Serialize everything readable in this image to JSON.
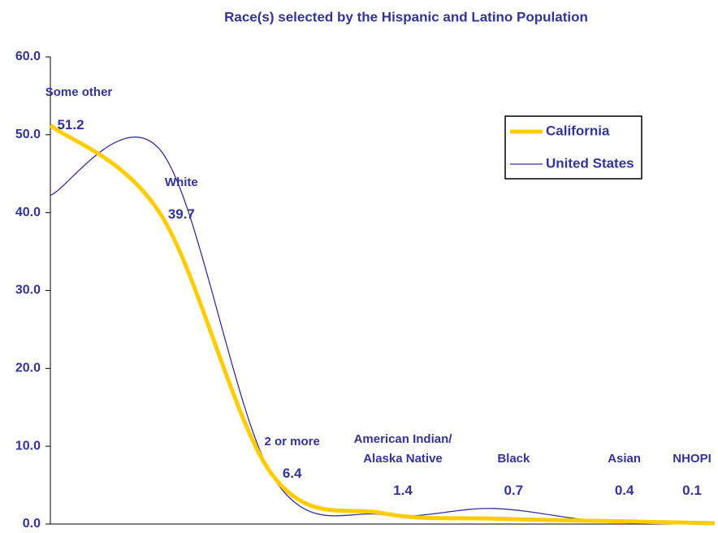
{
  "chart_data": {
    "type": "line",
    "title": "Race(s) selected by the Hispanic and Latino Population",
    "categories": [
      "Some other",
      "White",
      "2 or more",
      "American Indian/ Alaska Native",
      "Black",
      "Asian",
      "NHOPI"
    ],
    "series": [
      {
        "name": "California",
        "color": "#ffcc00",
        "values": [
          51.2,
          39.7,
          6.4,
          1.4,
          0.7,
          0.4,
          0.1
        ]
      },
      {
        "name": "United States",
        "color": "#333399",
        "values": [
          42.2,
          47.9,
          6.3,
          1.2,
          2.0,
          0.3,
          0.1
        ]
      }
    ],
    "ylim": [
      0,
      60
    ],
    "yticks": [
      {
        "value": 0,
        "label": "0.0"
      },
      {
        "value": 10,
        "label": "10.0"
      },
      {
        "value": 20,
        "label": "20.0"
      },
      {
        "value": 30,
        "label": "30.0"
      },
      {
        "value": 40,
        "label": "40.0"
      },
      {
        "value": 50,
        "label": "50.0"
      },
      {
        "value": 60,
        "label": "60.0"
      }
    ],
    "grid": false,
    "smooth": true,
    "legend": "upper right"
  }
}
